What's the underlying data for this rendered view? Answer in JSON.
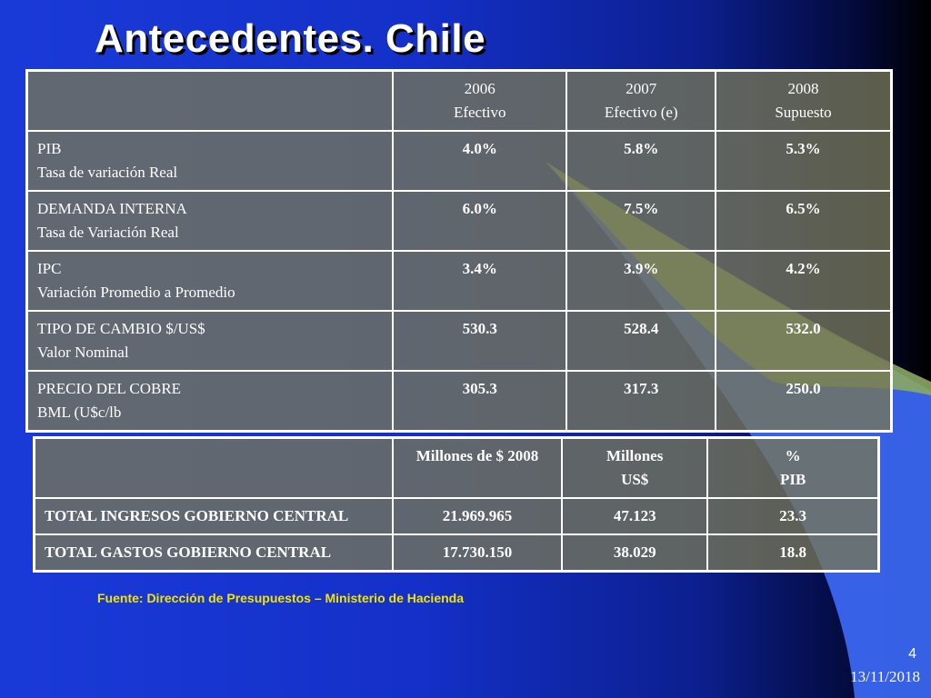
{
  "slide": {
    "title": "Antecedentes. Chile",
    "source": "Fuente: Dirección de Presupuestos – Ministerio de Hacienda",
    "page_number": "4",
    "date": "13/11/2018"
  },
  "table1": {
    "headers": [
      {
        "line1": "",
        "line2": ""
      },
      {
        "line1": "2006",
        "line2": "Efectivo"
      },
      {
        "line1": "2007",
        "line2": "Efectivo (e)"
      },
      {
        "line1": "2008",
        "line2": "Supuesto"
      }
    ],
    "rows": [
      {
        "label1": "PIB",
        "label2": "Tasa de variación Real",
        "values": [
          "4.0%",
          "5.8%",
          "5.3%"
        ]
      },
      {
        "label1": "DEMANDA INTERNA",
        "label2": "Tasa de Variación Real",
        "values": [
          "6.0%",
          "7.5%",
          "6.5%"
        ]
      },
      {
        "label1": "IPC",
        "label2": "Variación Promedio a Promedio",
        "values": [
          "3.4%",
          "3.9%",
          "4.2%"
        ]
      },
      {
        "label1": "TIPO DE CAMBIO $/US$",
        "label2": "Valor Nominal",
        "values": [
          "530.3",
          "528.4",
          "532.0"
        ]
      },
      {
        "label1": "PRECIO DEL COBRE",
        "label2": "BML (U$c/lb",
        "values": [
          "305.3",
          "317.3",
          "250.0"
        ]
      }
    ]
  },
  "table2": {
    "headers": [
      {
        "line1": "",
        "line2": ""
      },
      {
        "line1": "Millones de $ 2008",
        "line2": ""
      },
      {
        "line1": "Millones",
        "line2": "US$"
      },
      {
        "line1": "%",
        "line2": "PIB"
      }
    ],
    "rows": [
      {
        "label": "TOTAL INGRESOS GOBIERNO CENTRAL",
        "values": [
          "21.969.965",
          "47.123",
          "23.3"
        ]
      },
      {
        "label": "TOTAL GASTOS GOBIERNO CENTRAL",
        "values": [
          "17.730.150",
          "38.029",
          "18.8"
        ]
      }
    ]
  },
  "colors": {
    "background_blue": "#1a3ad8",
    "cell_olive": "#767656",
    "source_yellow": "#f2e400",
    "swoosh_green": "#8aa860",
    "swoosh_blue": "#3a66f0"
  }
}
